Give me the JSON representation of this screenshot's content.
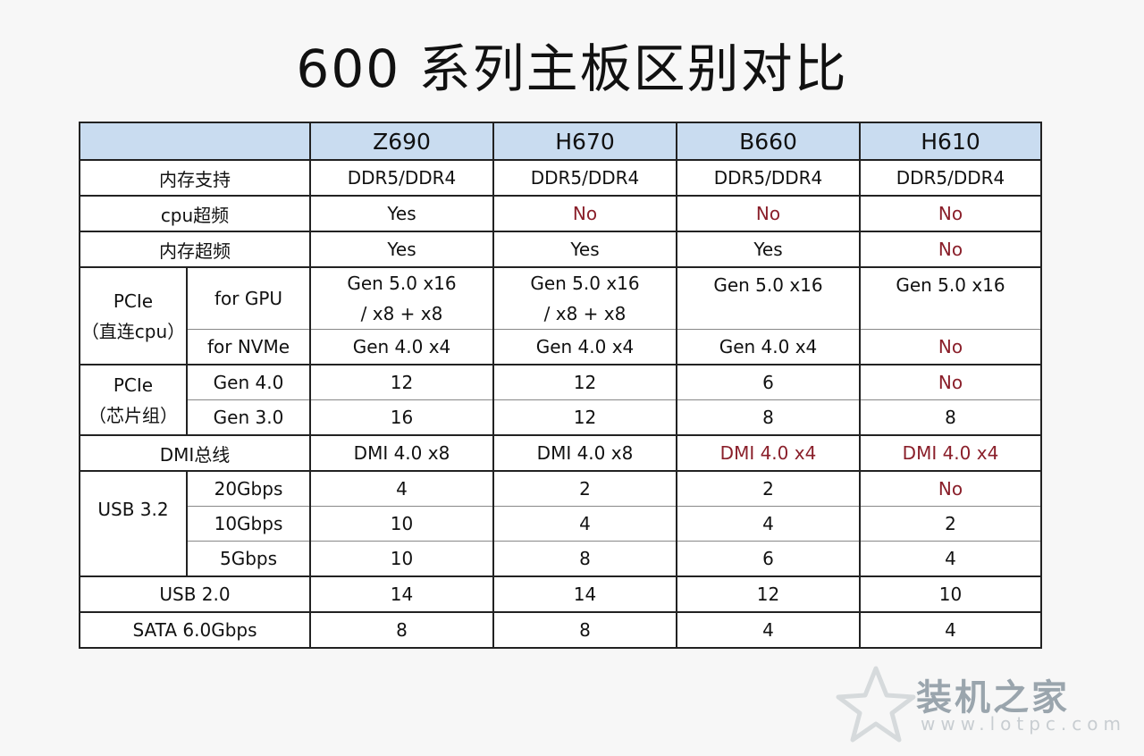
{
  "title": "600 系列主板区别对比",
  "columns": [
    "Z690",
    "H670",
    "B660",
    "H610"
  ],
  "rows": {
    "memory_support": {
      "label": "内存支持",
      "values": [
        "DDR5/DDR4",
        "DDR5/DDR4",
        "DDR5/DDR4",
        "DDR5/DDR4"
      ]
    },
    "cpu_oc": {
      "label": "cpu超频",
      "values": [
        "Yes",
        "No",
        "No",
        "No"
      ]
    },
    "mem_oc": {
      "label": "内存超频",
      "values": [
        "Yes",
        "Yes",
        "Yes",
        "No"
      ]
    },
    "pcie_cpu": {
      "label_line1": "PCIe",
      "label_line2": "（直连cpu）",
      "gpu": {
        "label": "for GPU",
        "line1": [
          "Gen 5.0 x16",
          "Gen 5.0 x16",
          "Gen 5.0 x16",
          "Gen 5.0 x16"
        ],
        "line2": [
          "/ x8 + x8",
          "/ x8 + x8",
          "",
          ""
        ]
      },
      "nvme": {
        "label": "for NVMe",
        "values": [
          "Gen 4.0 x4",
          "Gen 4.0 x4",
          "Gen 4.0 x4",
          "No"
        ]
      }
    },
    "pcie_chipset": {
      "label_line1": "PCIe",
      "label_line2": "（芯片组）",
      "gen4": {
        "label": "Gen 4.0",
        "values": [
          "12",
          "12",
          "6",
          "No"
        ]
      },
      "gen3": {
        "label": "Gen 3.0",
        "values": [
          "16",
          "12",
          "8",
          "8"
        ]
      }
    },
    "dmi": {
      "label": "DMI总线",
      "values": [
        "DMI 4.0 x8",
        "DMI 4.0 x8",
        "DMI 4.0 x4",
        "DMI 4.0 x4"
      ]
    },
    "usb32": {
      "label": "USB 3.2",
      "g20": {
        "label": "20Gbps",
        "values": [
          "4",
          "2",
          "2",
          "No"
        ]
      },
      "g10": {
        "label": "10Gbps",
        "values": [
          "10",
          "4",
          "4",
          "2"
        ]
      },
      "g5": {
        "label": "5Gbps",
        "values": [
          "10",
          "8",
          "6",
          "4"
        ]
      }
    },
    "usb20": {
      "label": "USB 2.0",
      "values": [
        "14",
        "14",
        "12",
        "10"
      ]
    },
    "sata": {
      "label": "SATA 6.0Gbps",
      "values": [
        "8",
        "8",
        "4",
        "4"
      ]
    }
  },
  "highlight_color": "#8a1f2a",
  "header_bg": "#c9dcf0",
  "watermark": {
    "text": "装机之家",
    "url": "www.lotpc.com",
    "icon": "star-logo-icon"
  }
}
